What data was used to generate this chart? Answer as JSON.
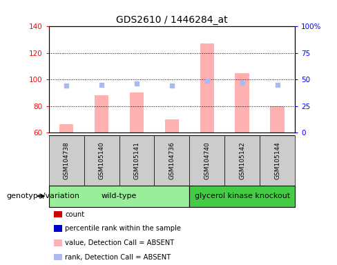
{
  "title": "GDS2610 / 1446284_at",
  "samples": [
    "GSM104738",
    "GSM105140",
    "GSM105141",
    "GSM104736",
    "GSM104740",
    "GSM105142",
    "GSM105144"
  ],
  "n_group1": 4,
  "n_group2": 3,
  "group1_label": "wild-type",
  "group2_label": "glycerol kinase knockout",
  "genotype_label": "genotype/variation",
  "bar_values": [
    66,
    88,
    90,
    70,
    127,
    105,
    80
  ],
  "rank_values": [
    44,
    45,
    46,
    44,
    49,
    47,
    45
  ],
  "ylim_left": [
    60,
    140
  ],
  "ylim_right": [
    0,
    100
  ],
  "yticks_left": [
    60,
    80,
    100,
    120,
    140
  ],
  "yticks_right": [
    0,
    25,
    50,
    75,
    100
  ],
  "ytick_labels_right": [
    "0",
    "25",
    "50",
    "75",
    "100%"
  ],
  "bar_color_absent": "#FFB0B0",
  "rank_color_absent": "#AABBEE",
  "bar_color_present": "#CC0000",
  "dot_color_present": "#0000CC",
  "group1_bg": "#99EE99",
  "group2_bg": "#44CC44",
  "sample_bg": "#CCCCCC",
  "legend_labels": [
    "count",
    "percentile rank within the sample",
    "value, Detection Call = ABSENT",
    "rank, Detection Call = ABSENT"
  ],
  "legend_colors": [
    "#CC0000",
    "#0000CC",
    "#FFB0B0",
    "#AABBEE"
  ]
}
